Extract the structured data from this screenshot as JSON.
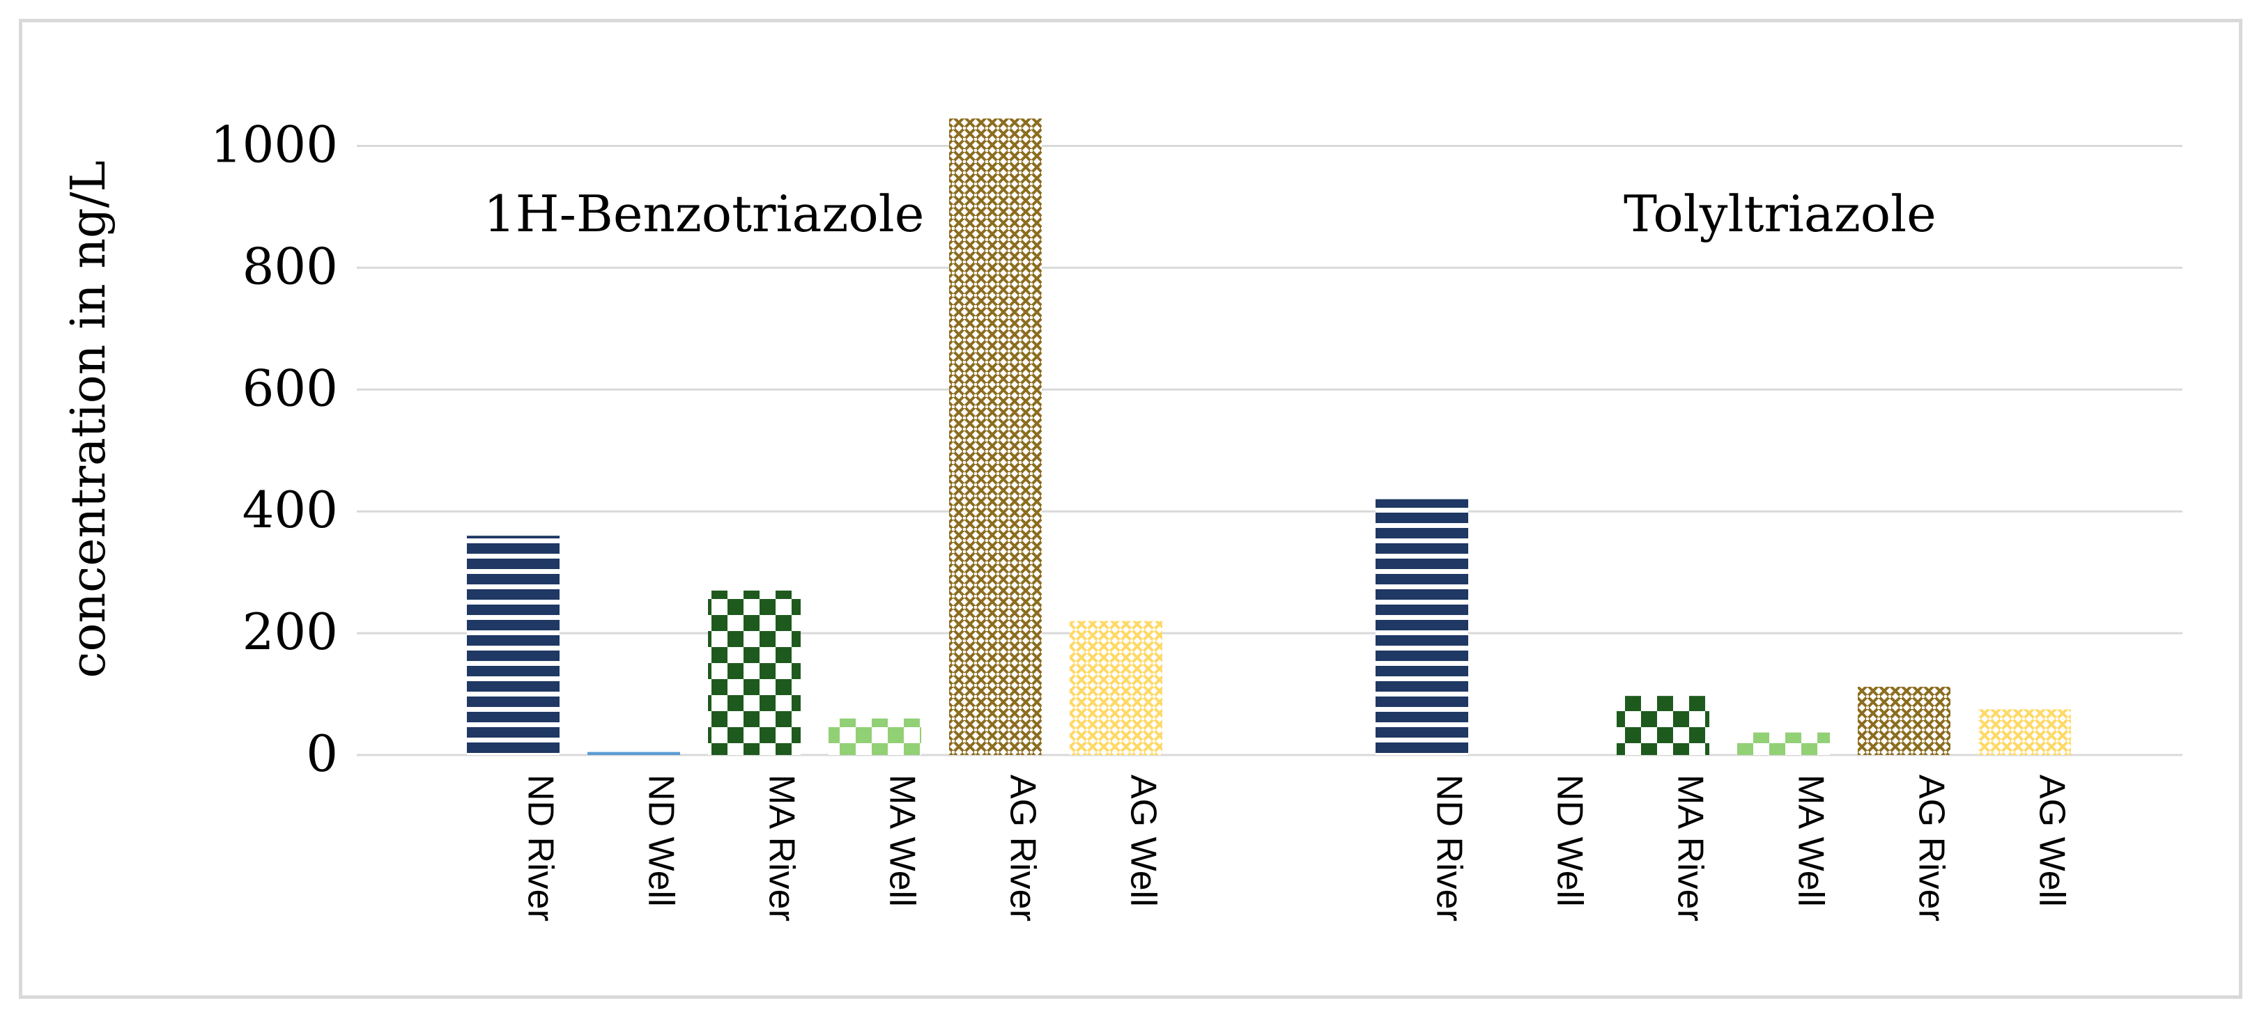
{
  "colors": {
    "background": "#ffffff",
    "border": "#d9d9d9",
    "grid": "#d9d9d9",
    "text": "#000000"
  },
  "chart_data": {
    "type": "bar",
    "ylabel": "concentration in ng/L",
    "ylim": [
      0,
      1040
    ],
    "yticks": [
      0,
      200,
      400,
      600,
      800,
      1000
    ],
    "grid": true,
    "legend": "none",
    "groups": [
      {
        "label": "1H-Benzotriazole",
        "categories": [
          "ND River",
          "ND Well",
          "MA River",
          "MA Well",
          "AG River",
          "AG Well"
        ],
        "values": [
          360,
          5,
          270,
          60,
          1045,
          220
        ]
      },
      {
        "label": "Tolyltriazole",
        "categories": [
          "ND River",
          "ND Well",
          "MA River",
          "MA Well",
          "AG River",
          "AG Well"
        ],
        "values": [
          420,
          0,
          97,
          37,
          112,
          75
        ]
      }
    ],
    "bar_styles": [
      {
        "pattern": "hstripes",
        "color": "#1f3864"
      },
      {
        "pattern": "solid",
        "color": "#5b9bd5"
      },
      {
        "pattern": "checker",
        "color": "#1e5a1e"
      },
      {
        "pattern": "checker",
        "color": "#92d076"
      },
      {
        "pattern": "lattice",
        "color": "#8c6d1f"
      },
      {
        "pattern": "lattice",
        "color": "#ffd966"
      }
    ]
  }
}
